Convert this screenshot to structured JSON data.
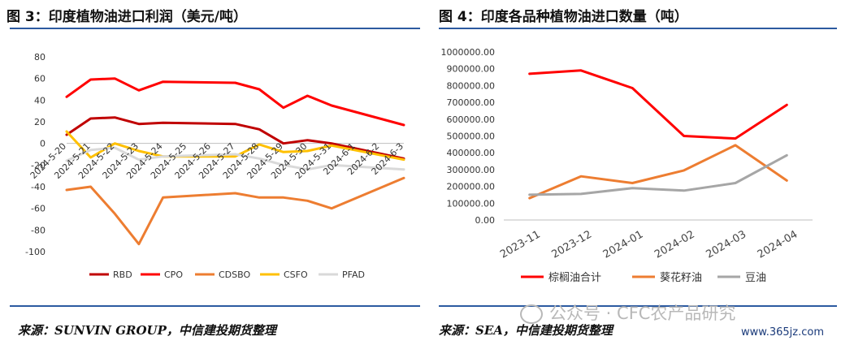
{
  "left": {
    "title": "图 3：印度植物油进口利润（美元/吨）",
    "source": "来源：SUNVIN GROUP，中信建投期货整理"
  },
  "right": {
    "title": "图 4：印度各品种植物油进口数量（吨）",
    "source": "来源：SEA，中信建投期货整理"
  },
  "watermark": {
    "text": "公众号 · CFC农产品研究",
    "site": "www.365jz.com"
  },
  "colors": {
    "RBD": "#c00000",
    "CPO": "#ff0000",
    "CDSBO": "#ed7d31",
    "CSFO": "#ffc000",
    "PFAD": "#d9d9d9",
    "palm": "#ff0000",
    "sunflower": "#ed7d31",
    "soy": "#a6a6a6",
    "rule": "#2c5aa0"
  },
  "chart_data": [
    {
      "type": "line",
      "title": "图 3：印度植物油进口利润（美元/吨）",
      "categories": [
        "2024-5-20",
        "2024-5-21",
        "2024-5-22",
        "2024-5-23",
        "2024-5-24",
        "2024-5-25",
        "2024-5-26",
        "2024-5-27",
        "2024-5-28",
        "2024-5-29",
        "2024-5-30",
        "2024-5-31",
        "2024-6-1",
        "2024-6-2",
        "2024-6-3"
      ],
      "x_ticks": [
        "2024-5-20",
        "2024-5-21",
        "2024-5-22",
        "2024-5-23",
        "2024-5-24",
        "2024-5-25",
        "2024-5-26",
        "2024-5-27",
        "2024-5-28",
        "2024-5-29",
        "2024-5-30",
        "2024-5-31",
        "2024-6-1",
        "2024-6-2",
        "2024-6-3"
      ],
      "y_ticks": [
        "80",
        "60",
        "40",
        "20",
        "0",
        "-20",
        "-40",
        "-60",
        "-80",
        "-100"
      ],
      "ylim": [
        -100,
        80
      ],
      "grid": false,
      "legend": "bottom",
      "series": [
        {
          "name": "RBD",
          "values": [
            8,
            23,
            24,
            18,
            19,
            null,
            null,
            18,
            13,
            0,
            3,
            0,
            null,
            null,
            -14
          ]
        },
        {
          "name": "CPO",
          "values": [
            43,
            59,
            60,
            49,
            57,
            null,
            null,
            56,
            50,
            33,
            44,
            35,
            null,
            null,
            17
          ]
        },
        {
          "name": "CDSBO",
          "values": [
            -43,
            -40,
            -65,
            -93,
            -50,
            null,
            null,
            -46,
            -50,
            -50,
            -53,
            -60,
            null,
            null,
            -32
          ]
        },
        {
          "name": "CSFO",
          "values": [
            11,
            -13,
            0,
            -7,
            -12,
            null,
            null,
            -12,
            -1,
            -8,
            -7,
            -2,
            null,
            null,
            -15
          ]
        },
        {
          "name": "PFAD",
          "values": [
            -16,
            -6,
            -4,
            -15,
            -12,
            null,
            null,
            -10,
            -14,
            -20,
            -24,
            -20,
            null,
            null,
            -24
          ]
        }
      ]
    },
    {
      "type": "line",
      "title": "图 4：印度各品种植物油进口数量（吨）",
      "categories": [
        "2023-11",
        "2023-12",
        "2024-01",
        "2024-02",
        "2024-03",
        "2024-04"
      ],
      "y_ticks": [
        "1000000.00",
        "900000.00",
        "800000.00",
        "700000.00",
        "600000.00",
        "500000.00",
        "400000.00",
        "300000.00",
        "200000.00",
        "100000.00",
        "0.00"
      ],
      "ylim": [
        0,
        1000000
      ],
      "grid": false,
      "legend": "bottom",
      "series": [
        {
          "name": "棕榈油合计",
          "values": [
            870000,
            890000,
            785000,
            500000,
            485000,
            685000
          ]
        },
        {
          "name": "葵花籽油",
          "values": [
            130000,
            260000,
            220000,
            295000,
            445000,
            235000
          ]
        },
        {
          "name": "豆油",
          "values": [
            150000,
            155000,
            190000,
            175000,
            220000,
            385000
          ]
        }
      ]
    }
  ]
}
